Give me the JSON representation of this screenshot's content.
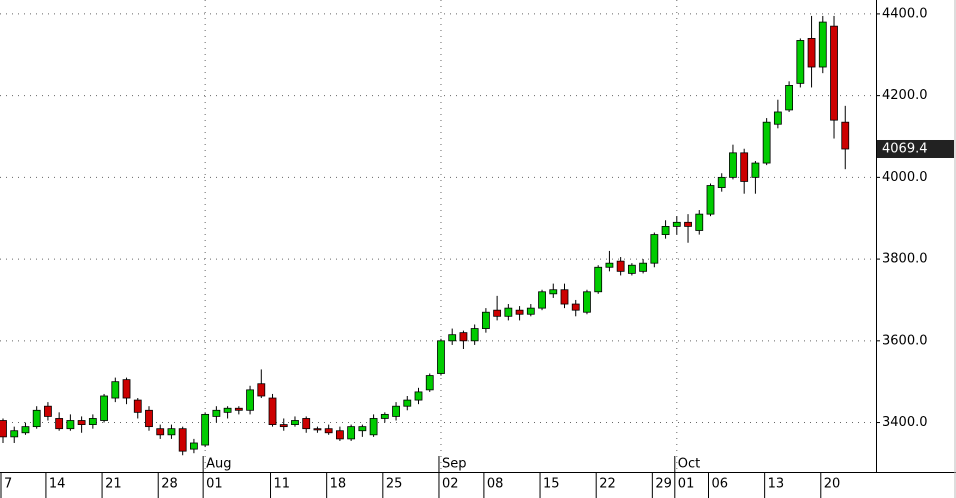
{
  "chart_data": {
    "type": "candlestick",
    "categories": [
      "7",
      null,
      null,
      null,
      "14",
      null,
      null,
      null,
      null,
      "21",
      null,
      null,
      null,
      null,
      "28",
      null,
      null,
      null,
      "01",
      null,
      null,
      null,
      null,
      null,
      "11",
      null,
      null,
      null,
      null,
      "18",
      null,
      null,
      null,
      null,
      "25",
      null,
      null,
      null,
      null,
      "02",
      null,
      null,
      null,
      "08",
      null,
      null,
      null,
      null,
      "15",
      null,
      null,
      null,
      null,
      "22",
      null,
      null,
      null,
      null,
      "29",
      null,
      "01",
      null,
      null,
      "06",
      null,
      null,
      null,
      null,
      "13",
      null,
      null,
      null,
      null,
      "20",
      null,
      null
    ],
    "months": [
      null,
      null,
      null,
      null,
      null,
      null,
      null,
      null,
      null,
      null,
      null,
      null,
      null,
      null,
      null,
      null,
      null,
      null,
      "Aug",
      null,
      null,
      null,
      null,
      null,
      null,
      null,
      null,
      null,
      null,
      null,
      null,
      null,
      null,
      null,
      null,
      null,
      null,
      null,
      null,
      "Sep",
      null,
      null,
      null,
      null,
      null,
      null,
      null,
      null,
      null,
      null,
      null,
      null,
      null,
      null,
      null,
      null,
      null,
      null,
      null,
      null,
      "Oct",
      null,
      null,
      null,
      null,
      null,
      null,
      null,
      null,
      null,
      null,
      null,
      null,
      null,
      null,
      null
    ],
    "open": [
      3405,
      3365,
      3375,
      3390,
      3440,
      3410,
      3385,
      3405,
      3395,
      3405,
      3460,
      3505,
      3455,
      3430,
      3385,
      3370,
      3385,
      3335,
      3345,
      3415,
      3425,
      3435,
      3430,
      3495,
      3460,
      3395,
      3395,
      3410,
      3385,
      3385,
      3380,
      3360,
      3380,
      3370,
      3410,
      3415,
      3440,
      3455,
      3480,
      3520,
      3600,
      3620,
      3600,
      3630,
      3675,
      3660,
      3675,
      3665,
      3680,
      3715,
      3725,
      3690,
      3670,
      3720,
      3780,
      3795,
      3765,
      3770,
      3790,
      3860,
      3880,
      3890,
      3870,
      3910,
      3975,
      4000,
      4060,
      4000,
      4035,
      4130,
      4165,
      4230,
      4340,
      4270,
      4370,
      4135
    ],
    "high": [
      3410,
      3390,
      3400,
      3440,
      3450,
      3425,
      3420,
      3415,
      3420,
      3470,
      3510,
      3510,
      3460,
      3440,
      3395,
      3395,
      3390,
      3360,
      3425,
      3440,
      3440,
      3440,
      3490,
      3530,
      3470,
      3410,
      3415,
      3415,
      3390,
      3395,
      3390,
      3395,
      3395,
      3420,
      3425,
      3450,
      3465,
      3485,
      3520,
      3605,
      3630,
      3625,
      3640,
      3680,
      3710,
      3690,
      3685,
      3690,
      3725,
      3740,
      3740,
      3700,
      3725,
      3785,
      3820,
      3805,
      3790,
      3800,
      3865,
      3895,
      3905,
      3910,
      3920,
      3985,
      4010,
      4080,
      4070,
      4040,
      4145,
      4190,
      4235,
      4340,
      4395,
      4395,
      4395,
      4175
    ],
    "low": [
      3350,
      3350,
      3370,
      3385,
      3405,
      3380,
      3380,
      3375,
      3385,
      3400,
      3450,
      3445,
      3410,
      3380,
      3360,
      3360,
      3320,
      3325,
      3340,
      3400,
      3410,
      3420,
      3420,
      3460,
      3390,
      3380,
      3390,
      3375,
      3375,
      3370,
      3355,
      3355,
      3365,
      3365,
      3400,
      3405,
      3430,
      3445,
      3475,
      3515,
      3590,
      3580,
      3590,
      3620,
      3650,
      3650,
      3650,
      3660,
      3675,
      3705,
      3680,
      3660,
      3665,
      3715,
      3770,
      3760,
      3760,
      3765,
      3780,
      3850,
      3860,
      3840,
      3860,
      3905,
      3965,
      3995,
      3960,
      3960,
      4030,
      4120,
      4160,
      4220,
      4220,
      4255,
      4095,
      4020
    ],
    "close": [
      3365,
      3380,
      3390,
      3430,
      3415,
      3385,
      3405,
      3395,
      3410,
      3465,
      3500,
      3460,
      3425,
      3390,
      3370,
      3385,
      3330,
      3350,
      3420,
      3430,
      3435,
      3430,
      3480,
      3465,
      3395,
      3390,
      3405,
      3385,
      3382,
      3375,
      3360,
      3390,
      3390,
      3410,
      3420,
      3440,
      3455,
      3475,
      3515,
      3600,
      3615,
      3600,
      3630,
      3670,
      3660,
      3680,
      3665,
      3680,
      3720,
      3725,
      3690,
      3675,
      3720,
      3780,
      3790,
      3770,
      3785,
      3790,
      3860,
      3880,
      3890,
      3880,
      3910,
      3980,
      4000,
      4060,
      3990,
      4035,
      4135,
      4160,
      4225,
      4335,
      4270,
      4380,
      4140,
      4069.4
    ],
    "up_color": "#00cc00",
    "down_color": "#cc0000",
    "ylim": [
      3279,
      4434
    ],
    "yticks": [
      {
        "value": 3400,
        "label": "3400.0"
      },
      {
        "value": 3600,
        "label": "3600.0"
      },
      {
        "value": 3800,
        "label": "3800.0"
      },
      {
        "value": 4000,
        "label": "4000.0"
      },
      {
        "value": 4200,
        "label": "4200.0"
      },
      {
        "value": 4400,
        "label": "4400.0"
      }
    ],
    "last_price": 4069.4,
    "grid": true
  }
}
